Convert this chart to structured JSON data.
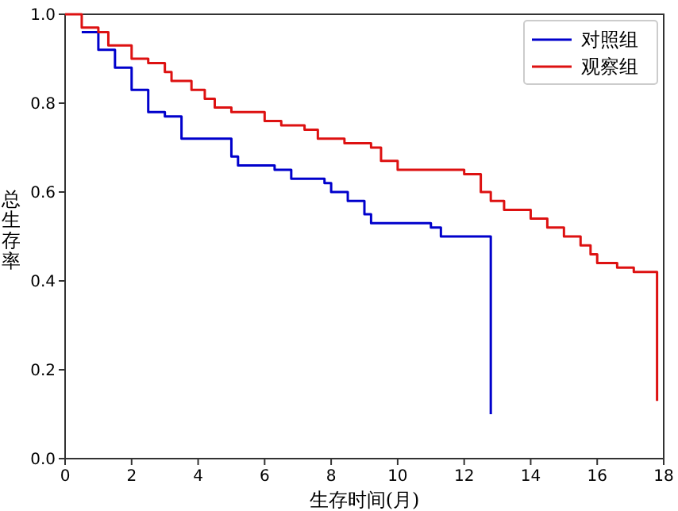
{
  "chart_data": {
    "type": "step",
    "xlabel": "生存时间(月)",
    "ylabel": "总生存率",
    "xlim": [
      0,
      18
    ],
    "ylim": [
      0,
      1
    ],
    "xticks": [
      0,
      2,
      4,
      6,
      8,
      10,
      12,
      14,
      16,
      18
    ],
    "yticks": [
      {
        "value": 0,
        "label": "0.0"
      },
      {
        "value": 0.2,
        "label": "0.2"
      },
      {
        "value": 0.4,
        "label": "0.4"
      },
      {
        "value": 0.6,
        "label": "0.6"
      },
      {
        "value": 0.8,
        "label": "0.8"
      },
      {
        "value": 1,
        "label": "1.0"
      }
    ],
    "legend": "top right",
    "grid": false,
    "series": [
      {
        "name": "对照组",
        "color": "#0000cc",
        "x": [
          0.5,
          1,
          1.5,
          2,
          2.5,
          3,
          3.5,
          4.7,
          5,
          5.2,
          6.3,
          6.8,
          7.8,
          8,
          8.5,
          9,
          9.2,
          10.8,
          11,
          11.3,
          12.8
        ],
        "values": [
          0.96,
          0.92,
          0.88,
          0.83,
          0.78,
          0.77,
          0.72,
          0.72,
          0.68,
          0.66,
          0.65,
          0.63,
          0.62,
          0.6,
          0.58,
          0.55,
          0.53,
          0.53,
          0.52,
          0.5,
          0.1
        ]
      },
      {
        "name": "观察组",
        "color": "#dd1111",
        "x": [
          0,
          0.5,
          1,
          1.3,
          2,
          2.5,
          3,
          3.2,
          3.8,
          4.2,
          4.5,
          5,
          6,
          6.5,
          7.2,
          7.6,
          8.4,
          9.2,
          9.5,
          10,
          12,
          12.5,
          12.8,
          13.2,
          14,
          14.5,
          15,
          15.5,
          15.8,
          16,
          16.6,
          17.1,
          17.8
        ],
        "values": [
          1,
          0.97,
          0.96,
          0.93,
          0.9,
          0.89,
          0.87,
          0.85,
          0.83,
          0.81,
          0.79,
          0.78,
          0.76,
          0.75,
          0.74,
          0.72,
          0.71,
          0.7,
          0.67,
          0.65,
          0.64,
          0.6,
          0.58,
          0.56,
          0.54,
          0.52,
          0.5,
          0.48,
          0.46,
          0.44,
          0.43,
          0.42,
          0.13
        ]
      }
    ]
  }
}
